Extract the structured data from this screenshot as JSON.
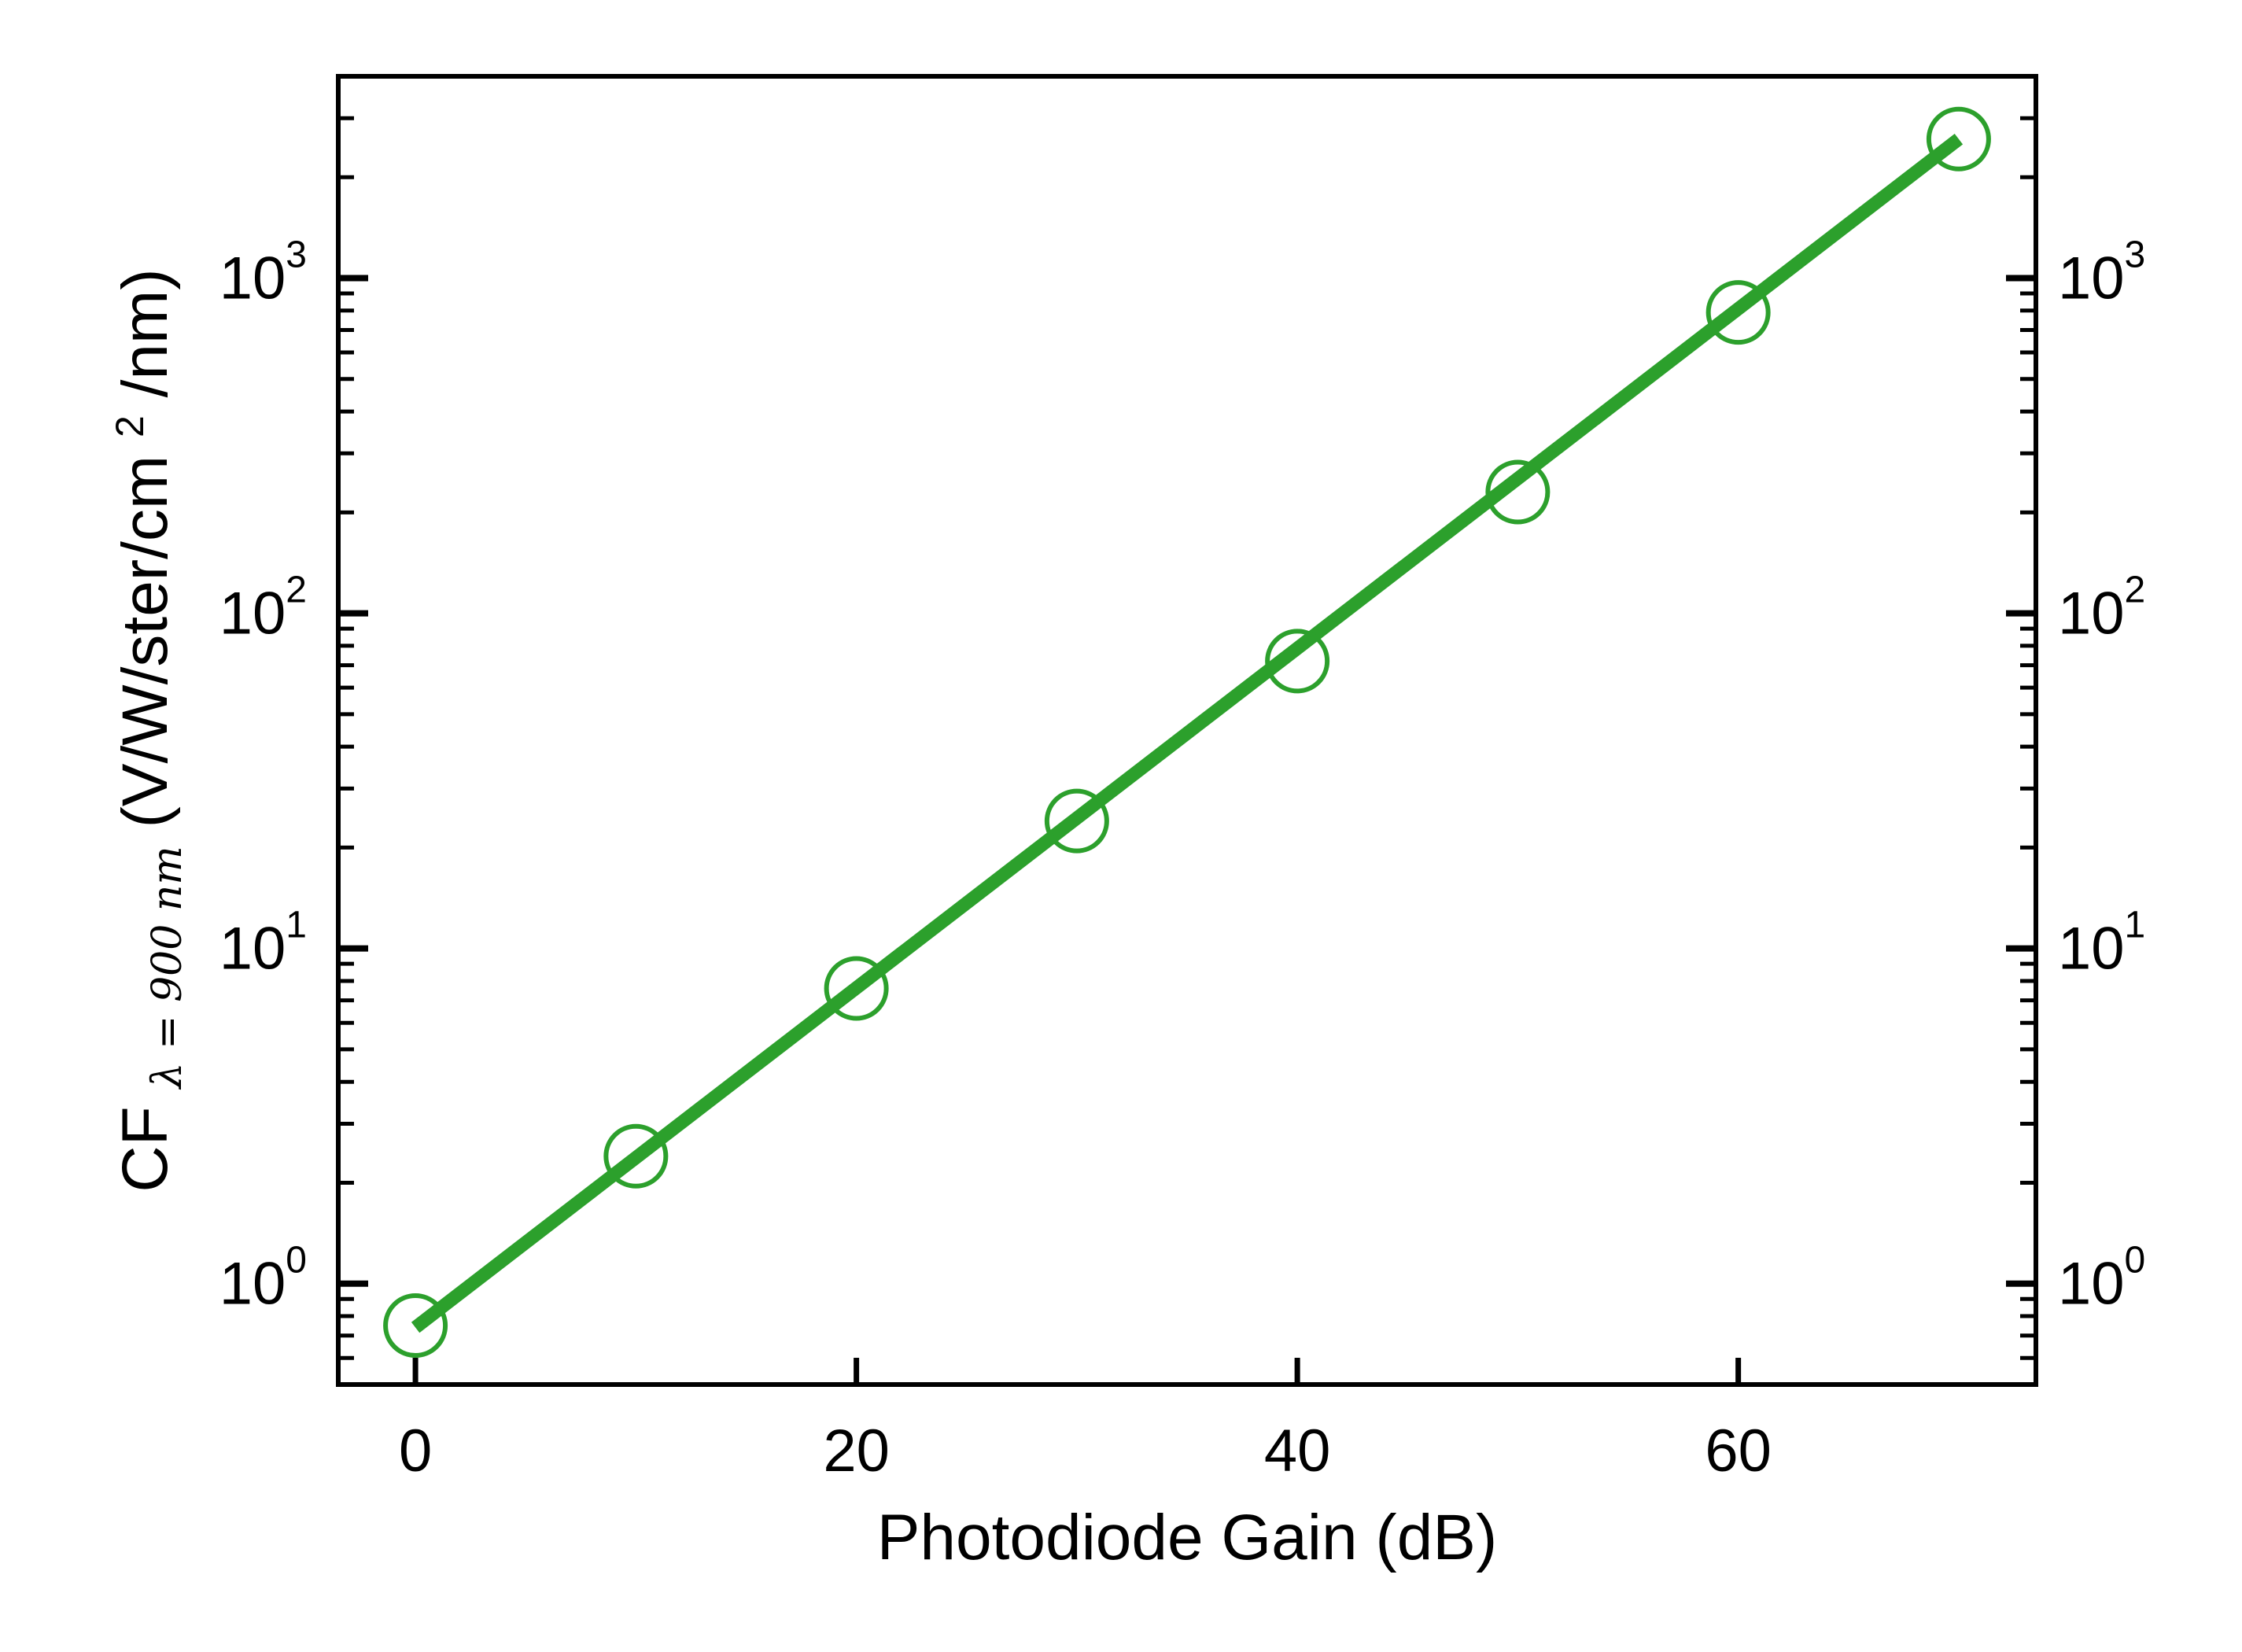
{
  "chart_data": {
    "type": "scatter",
    "xlabel": "Photodiode Gain (dB)",
    "ylabel": {
      "main": "CF",
      "subscript": "λ = 900 nm",
      "units": " (V/W/ster/cm",
      "units_sup": "2",
      "units_end": "/nm)"
    },
    "xlim": [
      -3.5,
      73.5
    ],
    "ylim": [
      0.5,
      4000
    ],
    "yscale": "log",
    "x_ticks": [
      0,
      20,
      40,
      60
    ],
    "y_ticks": [
      {
        "value": 1,
        "base": "10",
        "exp": "0"
      },
      {
        "value": 10,
        "base": "10",
        "exp": "1"
      },
      {
        "value": 100,
        "base": "10",
        "exp": "2"
      },
      {
        "value": 1000,
        "base": "10",
        "exp": "3"
      }
    ],
    "right_axis_mirrors_left": true,
    "grid": false,
    "series": [
      {
        "marker": "open-circle",
        "color": "#2ca02c",
        "x": [
          0,
          10,
          20,
          30,
          40,
          50,
          60,
          70
        ],
        "y": [
          0.75,
          2.4,
          7.6,
          24,
          72,
          230,
          790,
          2600
        ]
      },
      {
        "style": "line",
        "color": "#2ca02c",
        "x": [
          0,
          70
        ],
        "y": [
          0.74,
          2600
        ]
      }
    ]
  }
}
